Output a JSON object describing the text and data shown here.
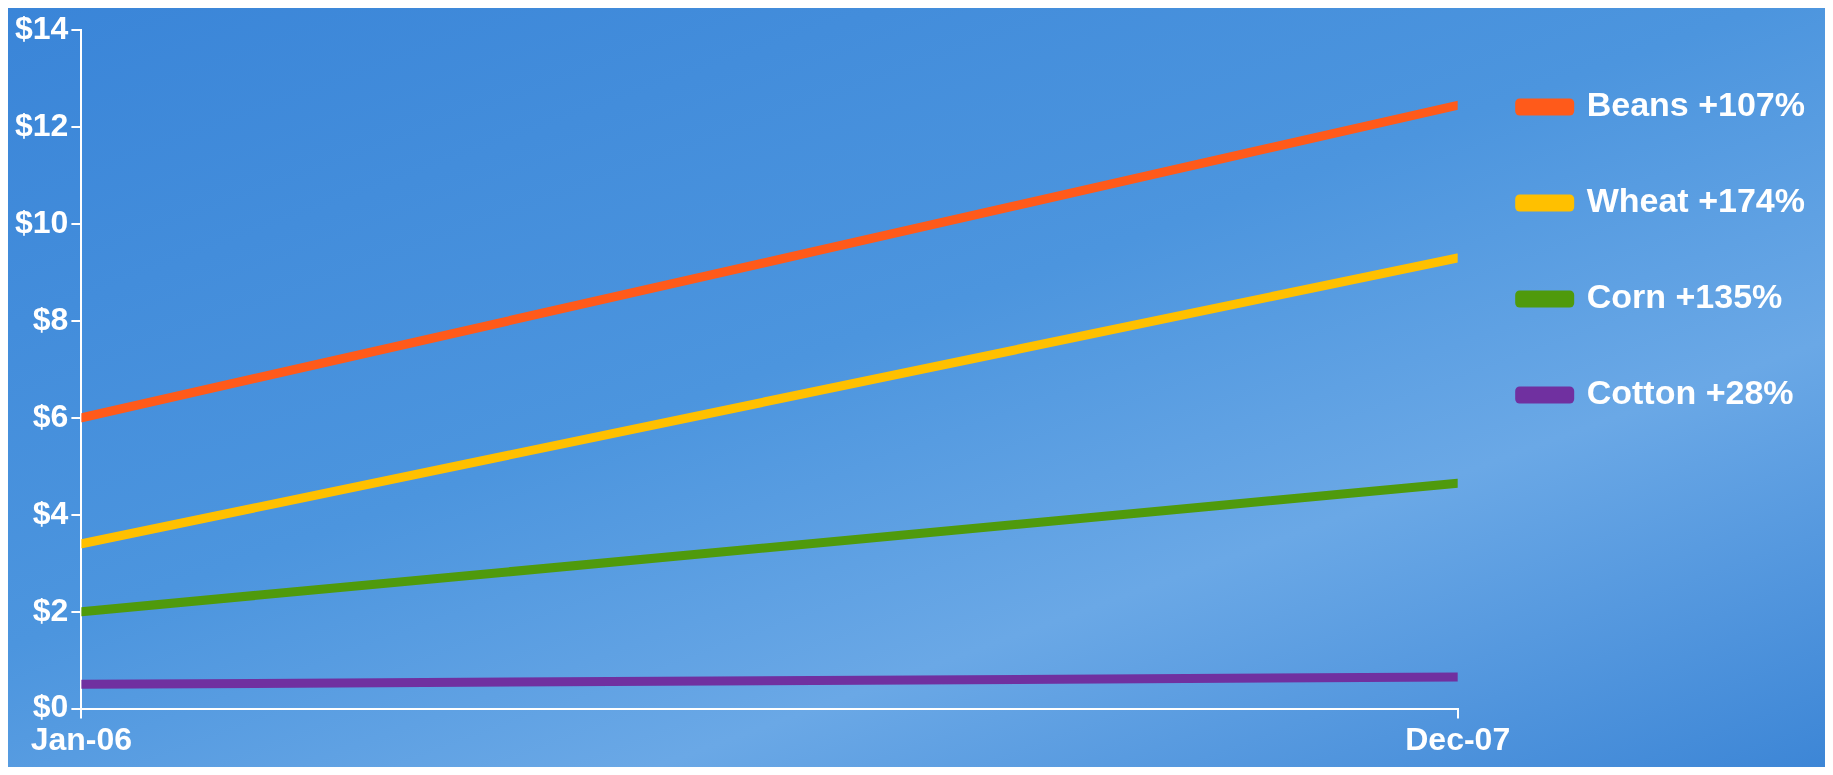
{
  "chart_data": {
    "type": "line",
    "x": [
      "2006-01",
      "2007-12"
    ],
    "xlim": [
      "2006-01",
      "2007-12"
    ],
    "xticks": [
      {
        "value": "2006-01",
        "label": "Jan-06"
      },
      {
        "value": "2007-12",
        "label": "Dec-07"
      }
    ],
    "ylim": [
      0,
      14
    ],
    "yticks": [
      {
        "value": 0,
        "label": "$0"
      },
      {
        "value": 2,
        "label": "$2"
      },
      {
        "value": 4,
        "label": "$4"
      },
      {
        "value": 6,
        "label": "$6"
      },
      {
        "value": 8,
        "label": "$8"
      },
      {
        "value": 10,
        "label": "$10"
      },
      {
        "value": 12,
        "label": "$12"
      },
      {
        "value": 14,
        "label": "$14"
      }
    ],
    "series": [
      {
        "name": "Beans +107%",
        "color": "#ff5a1a",
        "values": [
          6.0,
          12.45
        ]
      },
      {
        "name": "Wheat +174%",
        "color": "#ffc000",
        "values": [
          3.4,
          9.3
        ]
      },
      {
        "name": "Corn +135%",
        "color": "#4f9a0c",
        "values": [
          2.0,
          4.65
        ]
      },
      {
        "name": "Cotton +28%",
        "color": "#7030a0",
        "values": [
          0.5,
          0.65
        ]
      }
    ],
    "grid": false,
    "legend": "right",
    "marker": "none",
    "line_style": "solid"
  }
}
